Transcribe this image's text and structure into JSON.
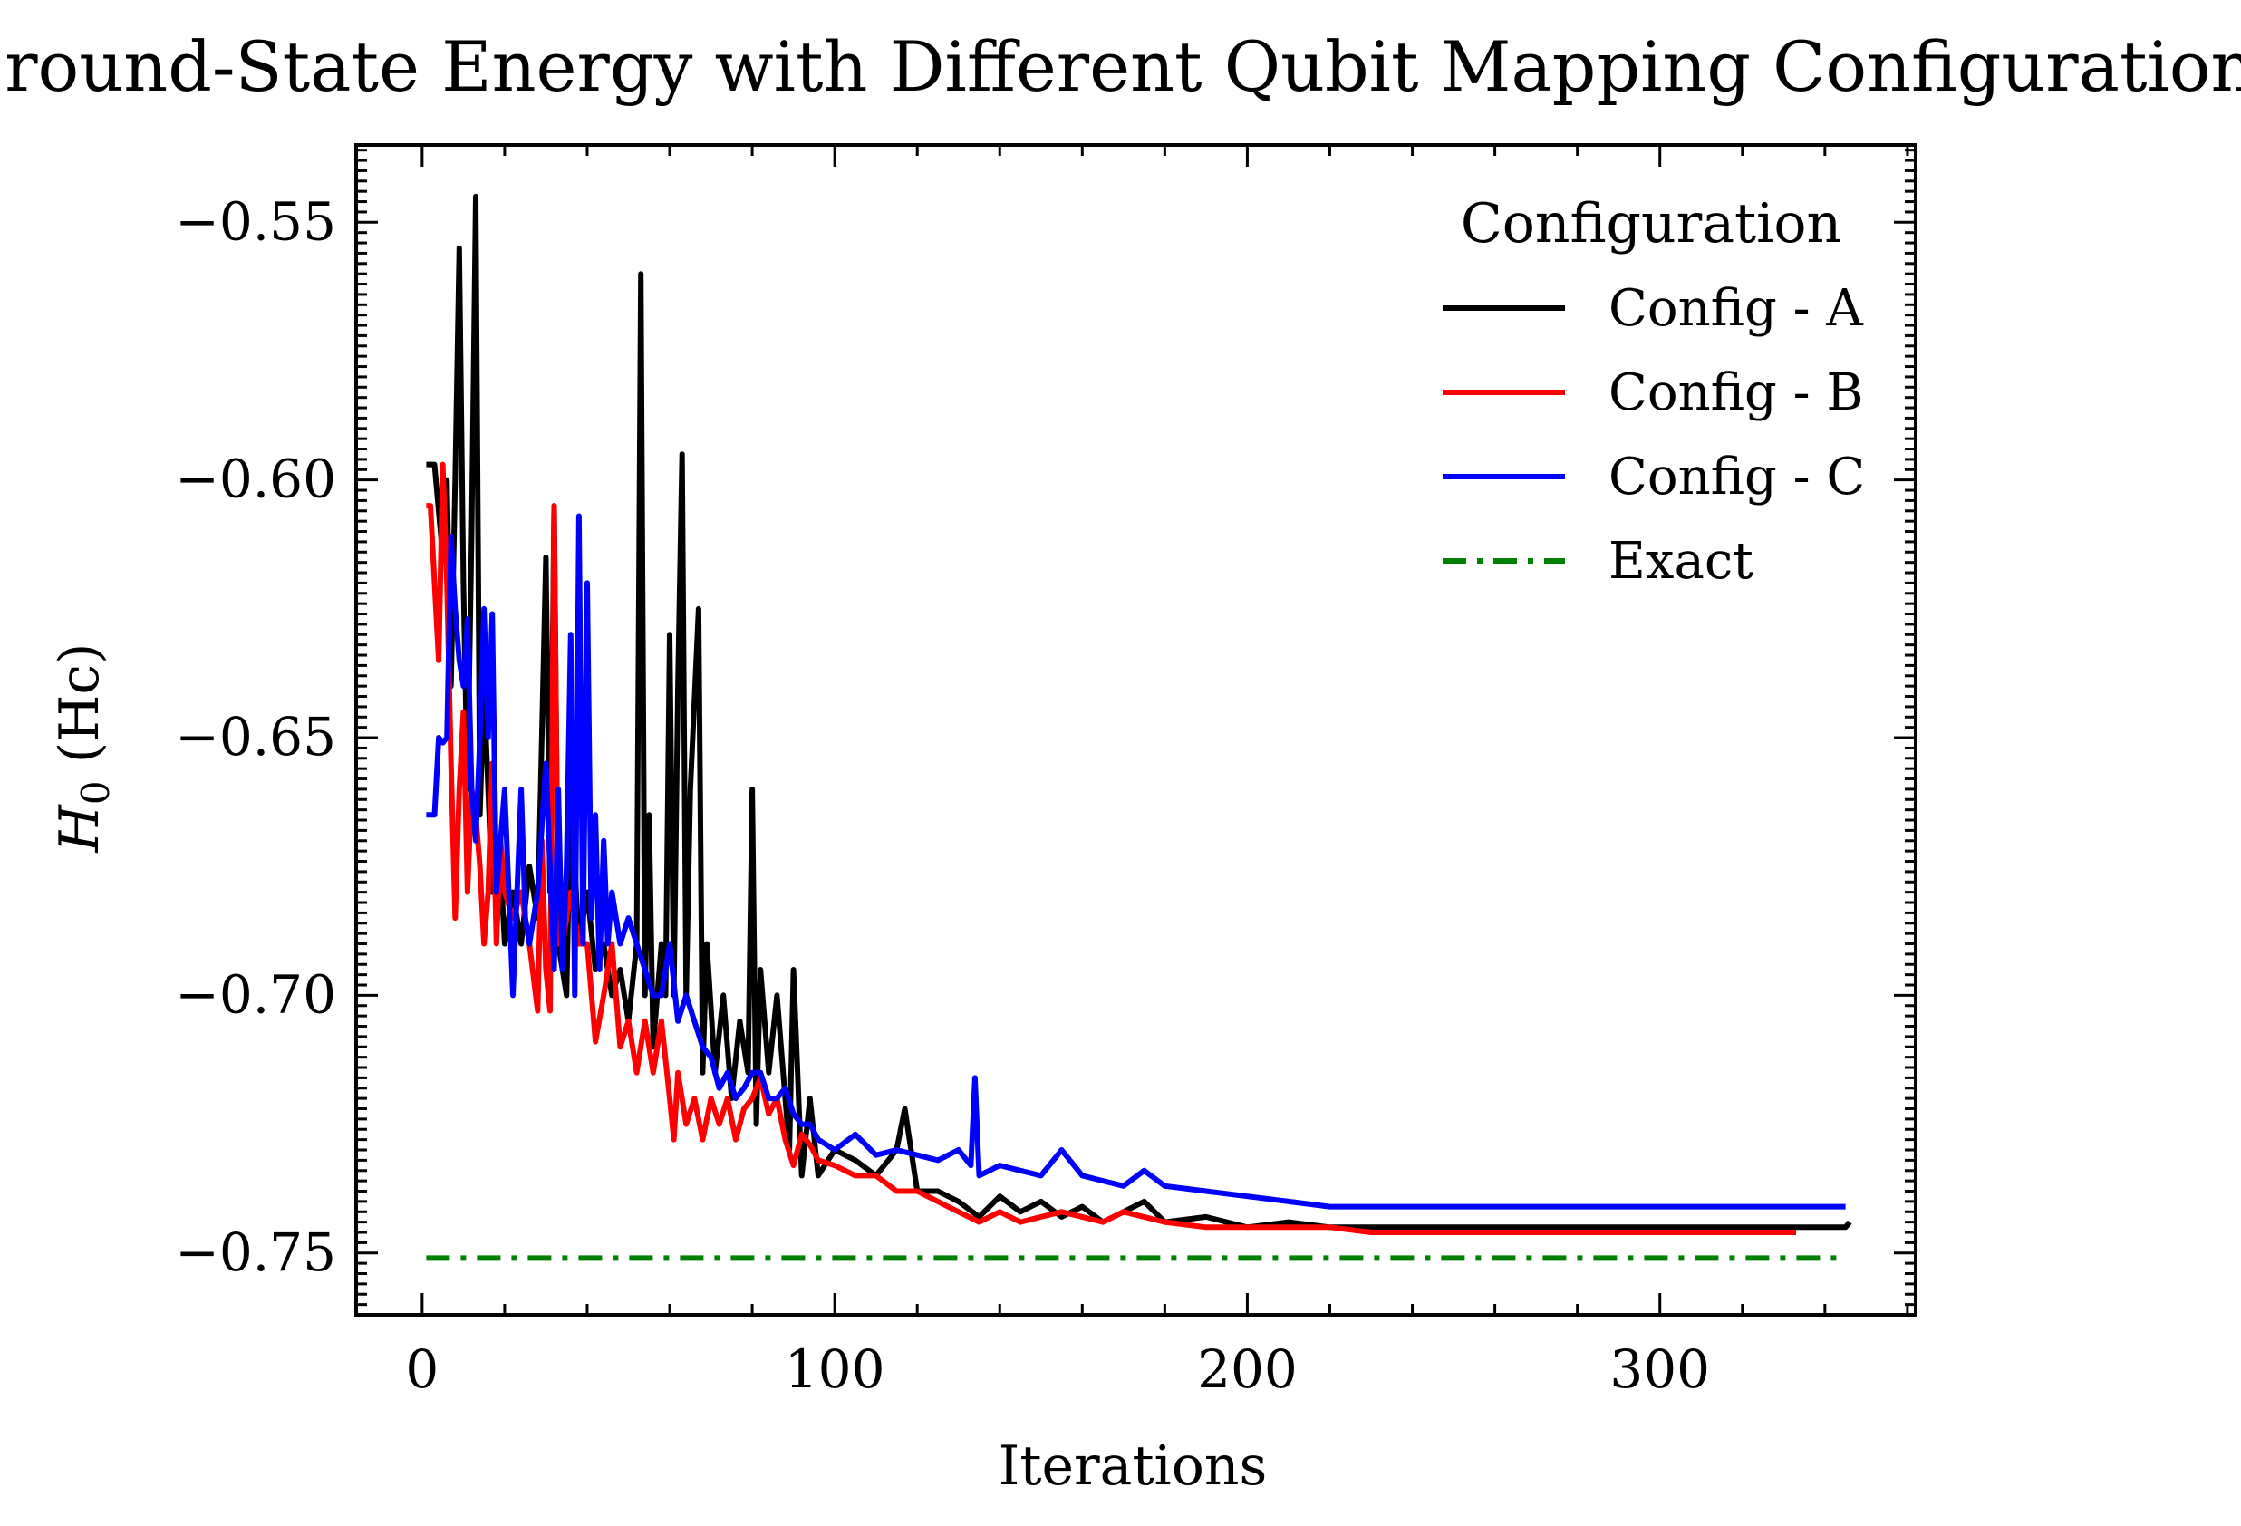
{
  "chart_data": {
    "type": "line",
    "title": "Ground-State Energy with Different Qubit Mapping Configurations",
    "xlabel": "Iterations",
    "ylabel": "H0 (Hc)",
    "ylabel_main": "H",
    "ylabel_sub": "0",
    "ylabel_unit": " (Hc)",
    "xlim": [
      -16,
      362
    ],
    "ylim": [
      -0.762,
      -0.535
    ],
    "xticks": [
      0,
      100,
      200,
      300
    ],
    "xtick_labels": [
      "0",
      "100",
      "200",
      "300"
    ],
    "yticks": [
      -0.55,
      -0.6,
      -0.65,
      -0.7,
      -0.75
    ],
    "ytick_labels": [
      "−0.55",
      "−0.60",
      "−0.65",
      "−0.70",
      "−0.75"
    ],
    "grid": false,
    "legend_title": "Configuration",
    "legend_position": "top-right",
    "series": [
      {
        "name": "Config - A",
        "color": "#000000",
        "style": "solid",
        "points": [
          [
            1,
            -0.597
          ],
          [
            3,
            -0.597
          ],
          [
            5,
            -0.615
          ],
          [
            6,
            -0.6
          ],
          [
            7,
            -0.64
          ],
          [
            8,
            -0.6
          ],
          [
            9,
            -0.555
          ],
          [
            10,
            -0.62
          ],
          [
            11,
            -0.66
          ],
          [
            12,
            -0.61
          ],
          [
            13,
            -0.545
          ],
          [
            14,
            -0.665
          ],
          [
            15,
            -0.64
          ],
          [
            17,
            -0.68
          ],
          [
            19,
            -0.675
          ],
          [
            20,
            -0.69
          ],
          [
            22,
            -0.68
          ],
          [
            24,
            -0.69
          ],
          [
            26,
            -0.675
          ],
          [
            28,
            -0.685
          ],
          [
            29,
            -0.65
          ],
          [
            30,
            -0.615
          ],
          [
            31,
            -0.68
          ],
          [
            32,
            -0.605
          ],
          [
            33,
            -0.69
          ],
          [
            35,
            -0.7
          ],
          [
            36,
            -0.66
          ],
          [
            38,
            -0.69
          ],
          [
            40,
            -0.68
          ],
          [
            42,
            -0.695
          ],
          [
            44,
            -0.69
          ],
          [
            46,
            -0.7
          ],
          [
            48,
            -0.695
          ],
          [
            50,
            -0.705
          ],
          [
            52,
            -0.69
          ],
          [
            53,
            -0.56
          ],
          [
            54,
            -0.7
          ],
          [
            55,
            -0.665
          ],
          [
            56,
            -0.71
          ],
          [
            58,
            -0.69
          ],
          [
            59,
            -0.7
          ],
          [
            60,
            -0.63
          ],
          [
            61,
            -0.7
          ],
          [
            62,
            -0.64
          ],
          [
            63,
            -0.595
          ],
          [
            64,
            -0.7
          ],
          [
            65,
            -0.66
          ],
          [
            67,
            -0.625
          ],
          [
            68,
            -0.715
          ],
          [
            69,
            -0.69
          ],
          [
            71,
            -0.715
          ],
          [
            73,
            -0.7
          ],
          [
            75,
            -0.72
          ],
          [
            77,
            -0.705
          ],
          [
            79,
            -0.715
          ],
          [
            80,
            -0.66
          ],
          [
            81,
            -0.725
          ],
          [
            82,
            -0.695
          ],
          [
            84,
            -0.715
          ],
          [
            86,
            -0.7
          ],
          [
            88,
            -0.72
          ],
          [
            89,
            -0.73
          ],
          [
            90,
            -0.695
          ],
          [
            92,
            -0.735
          ],
          [
            94,
            -0.72
          ],
          [
            96,
            -0.735
          ],
          [
            100,
            -0.73
          ],
          [
            105,
            -0.732
          ],
          [
            110,
            -0.735
          ],
          [
            115,
            -0.73
          ],
          [
            117,
            -0.722
          ],
          [
            120,
            -0.738
          ],
          [
            125,
            -0.738
          ],
          [
            130,
            -0.74
          ],
          [
            135,
            -0.743
          ],
          [
            140,
            -0.739
          ],
          [
            145,
            -0.742
          ],
          [
            150,
            -0.74
          ],
          [
            155,
            -0.743
          ],
          [
            160,
            -0.741
          ],
          [
            165,
            -0.744
          ],
          [
            170,
            -0.742
          ],
          [
            175,
            -0.74
          ],
          [
            180,
            -0.744
          ],
          [
            190,
            -0.743
          ],
          [
            200,
            -0.745
          ],
          [
            210,
            -0.744
          ],
          [
            220,
            -0.745
          ],
          [
            240,
            -0.745
          ],
          [
            260,
            -0.745
          ],
          [
            280,
            -0.745
          ],
          [
            300,
            -0.745
          ],
          [
            320,
            -0.745
          ],
          [
            340,
            -0.745
          ],
          [
            345,
            -0.745
          ],
          [
            346,
            -0.744
          ]
        ]
      },
      {
        "name": "Config - B",
        "color": "#ff0000",
        "style": "solid",
        "points": [
          [
            1,
            -0.605
          ],
          [
            2,
            -0.605
          ],
          [
            3,
            -0.62
          ],
          [
            4,
            -0.635
          ],
          [
            5,
            -0.597
          ],
          [
            6,
            -0.62
          ],
          [
            7,
            -0.655
          ],
          [
            8,
            -0.685
          ],
          [
            9,
            -0.66
          ],
          [
            10,
            -0.645
          ],
          [
            11,
            -0.68
          ],
          [
            12,
            -0.66
          ],
          [
            13,
            -0.665
          ],
          [
            14,
            -0.675
          ],
          [
            15,
            -0.69
          ],
          [
            16,
            -0.68
          ],
          [
            17,
            -0.655
          ],
          [
            18,
            -0.69
          ],
          [
            19,
            -0.67
          ],
          [
            20,
            -0.68
          ],
          [
            22,
            -0.685
          ],
          [
            24,
            -0.68
          ],
          [
            26,
            -0.69
          ],
          [
            28,
            -0.703
          ],
          [
            29,
            -0.67
          ],
          [
            30,
            -0.695
          ],
          [
            31,
            -0.703
          ],
          [
            32,
            -0.605
          ],
          [
            33,
            -0.69
          ],
          [
            34,
            -0.69
          ],
          [
            36,
            -0.68
          ],
          [
            38,
            -0.69
          ],
          [
            40,
            -0.69
          ],
          [
            42,
            -0.709
          ],
          [
            44,
            -0.7
          ],
          [
            46,
            -0.69
          ],
          [
            48,
            -0.71
          ],
          [
            50,
            -0.705
          ],
          [
            52,
            -0.715
          ],
          [
            54,
            -0.705
          ],
          [
            56,
            -0.715
          ],
          [
            58,
            -0.705
          ],
          [
            60,
            -0.72
          ],
          [
            61,
            -0.728
          ],
          [
            62,
            -0.715
          ],
          [
            64,
            -0.725
          ],
          [
            66,
            -0.72
          ],
          [
            68,
            -0.728
          ],
          [
            70,
            -0.72
          ],
          [
            72,
            -0.725
          ],
          [
            74,
            -0.72
          ],
          [
            76,
            -0.728
          ],
          [
            78,
            -0.722
          ],
          [
            80,
            -0.72
          ],
          [
            82,
            -0.716
          ],
          [
            84,
            -0.723
          ],
          [
            86,
            -0.72
          ],
          [
            88,
            -0.728
          ],
          [
            90,
            -0.733
          ],
          [
            92,
            -0.727
          ],
          [
            94,
            -0.729
          ],
          [
            96,
            -0.732
          ],
          [
            100,
            -0.733
          ],
          [
            105,
            -0.735
          ],
          [
            110,
            -0.735
          ],
          [
            115,
            -0.738
          ],
          [
            120,
            -0.738
          ],
          [
            125,
            -0.74
          ],
          [
            130,
            -0.742
          ],
          [
            135,
            -0.744
          ],
          [
            140,
            -0.742
          ],
          [
            145,
            -0.744
          ],
          [
            150,
            -0.743
          ],
          [
            155,
            -0.742
          ],
          [
            160,
            -0.743
          ],
          [
            165,
            -0.744
          ],
          [
            170,
            -0.742
          ],
          [
            180,
            -0.744
          ],
          [
            190,
            -0.745
          ],
          [
            200,
            -0.745
          ],
          [
            210,
            -0.745
          ],
          [
            220,
            -0.745
          ],
          [
            230,
            -0.746
          ],
          [
            240,
            -0.746
          ],
          [
            250,
            -0.746
          ],
          [
            260,
            -0.746
          ],
          [
            270,
            -0.746
          ],
          [
            280,
            -0.746
          ],
          [
            290,
            -0.746
          ],
          [
            300,
            -0.746
          ],
          [
            310,
            -0.746
          ],
          [
            320,
            -0.746
          ],
          [
            333,
            -0.746
          ]
        ]
      },
      {
        "name": "Config - C",
        "color": "#0000ff",
        "style": "solid",
        "points": [
          [
            1,
            -0.665
          ],
          [
            2,
            -0.665
          ],
          [
            3,
            -0.665
          ],
          [
            4,
            -0.65
          ],
          [
            5,
            -0.651
          ],
          [
            6,
            -0.65
          ],
          [
            7,
            -0.611
          ],
          [
            8,
            -0.625
          ],
          [
            9,
            -0.635
          ],
          [
            10,
            -0.64
          ],
          [
            11,
            -0.627
          ],
          [
            12,
            -0.66
          ],
          [
            13,
            -0.67
          ],
          [
            14,
            -0.65
          ],
          [
            15,
            -0.625
          ],
          [
            16,
            -0.65
          ],
          [
            17,
            -0.626
          ],
          [
            18,
            -0.68
          ],
          [
            20,
            -0.66
          ],
          [
            22,
            -0.7
          ],
          [
            24,
            -0.66
          ],
          [
            25,
            -0.685
          ],
          [
            26,
            -0.69
          ],
          [
            28,
            -0.68
          ],
          [
            30,
            -0.655
          ],
          [
            32,
            -0.695
          ],
          [
            33,
            -0.66
          ],
          [
            34,
            -0.695
          ],
          [
            35,
            -0.675
          ],
          [
            36,
            -0.63
          ],
          [
            37,
            -0.7
          ],
          [
            38,
            -0.607
          ],
          [
            39,
            -0.69
          ],
          [
            40,
            -0.62
          ],
          [
            41,
            -0.685
          ],
          [
            42,
            -0.665
          ],
          [
            43,
            -0.695
          ],
          [
            44,
            -0.67
          ],
          [
            45,
            -0.69
          ],
          [
            46,
            -0.68
          ],
          [
            48,
            -0.69
          ],
          [
            50,
            -0.685
          ],
          [
            52,
            -0.69
          ],
          [
            54,
            -0.695
          ],
          [
            56,
            -0.7
          ],
          [
            58,
            -0.7
          ],
          [
            60,
            -0.69
          ],
          [
            62,
            -0.705
          ],
          [
            64,
            -0.7
          ],
          [
            66,
            -0.705
          ],
          [
            68,
            -0.71
          ],
          [
            70,
            -0.712
          ],
          [
            72,
            -0.718
          ],
          [
            74,
            -0.715
          ],
          [
            76,
            -0.72
          ],
          [
            78,
            -0.718
          ],
          [
            80,
            -0.715
          ],
          [
            82,
            -0.715
          ],
          [
            84,
            -0.72
          ],
          [
            86,
            -0.72
          ],
          [
            88,
            -0.718
          ],
          [
            90,
            -0.723
          ],
          [
            92,
            -0.725
          ],
          [
            94,
            -0.725
          ],
          [
            96,
            -0.728
          ],
          [
            100,
            -0.73
          ],
          [
            105,
            -0.727
          ],
          [
            110,
            -0.731
          ],
          [
            115,
            -0.73
          ],
          [
            120,
            -0.731
          ],
          [
            125,
            -0.732
          ],
          [
            130,
            -0.73
          ],
          [
            133,
            -0.733
          ],
          [
            134,
            -0.716
          ],
          [
            135,
            -0.735
          ],
          [
            140,
            -0.733
          ],
          [
            145,
            -0.734
          ],
          [
            150,
            -0.735
          ],
          [
            155,
            -0.73
          ],
          [
            160,
            -0.735
          ],
          [
            165,
            -0.736
          ],
          [
            170,
            -0.737
          ],
          [
            175,
            -0.734
          ],
          [
            180,
            -0.737
          ],
          [
            190,
            -0.738
          ],
          [
            200,
            -0.739
          ],
          [
            210,
            -0.74
          ],
          [
            220,
            -0.741
          ],
          [
            230,
            -0.741
          ],
          [
            240,
            -0.741
          ],
          [
            250,
            -0.741
          ],
          [
            260,
            -0.741
          ],
          [
            270,
            -0.741
          ],
          [
            280,
            -0.741
          ],
          [
            290,
            -0.741
          ],
          [
            300,
            -0.741
          ],
          [
            310,
            -0.741
          ],
          [
            320,
            -0.741
          ],
          [
            330,
            -0.741
          ],
          [
            340,
            -0.741
          ],
          [
            345,
            -0.741
          ]
        ]
      },
      {
        "name": "Exact",
        "color": "#008000",
        "style": "dashdot",
        "points": [
          [
            1,
            -0.751
          ],
          [
            345,
            -0.751
          ]
        ]
      }
    ]
  }
}
